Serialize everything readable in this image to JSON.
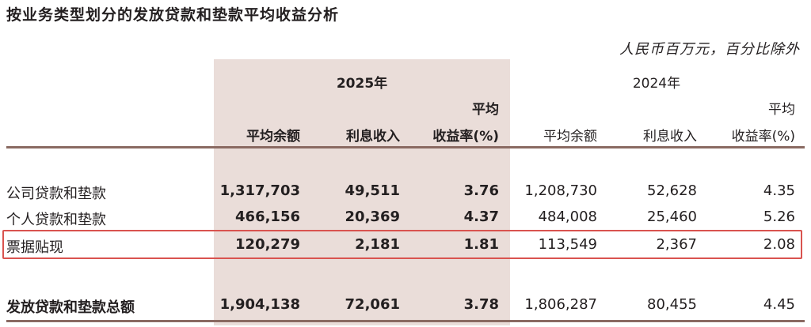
{
  "title": "按业务类型划分的发放贷款和垫款平均收益分析",
  "unit_note": "人民币百万元，百分比除外",
  "years": {
    "current": "2025年",
    "previous": "2024年"
  },
  "columns": {
    "current": {
      "avg_balance": "平均余额",
      "interest_income": "利息收入",
      "yield_line1": "平均",
      "yield_line2": "收益率(%)"
    },
    "previous": {
      "avg_balance": "平均余额",
      "interest_income": "利息收入",
      "yield_line1": "平均",
      "yield_line2": "收益率(%)"
    }
  },
  "rows": [
    {
      "label": "公司贷款和垫款",
      "cur_balance": "1,317,703",
      "cur_income": "49,511",
      "cur_yield": "3.76",
      "prev_balance": "1,208,730",
      "prev_income": "52,628",
      "prev_yield": "4.35"
    },
    {
      "label": "个人贷款和垫款",
      "cur_balance": "466,156",
      "cur_income": "20,369",
      "cur_yield": "4.37",
      "prev_balance": "484,008",
      "prev_income": "25,460",
      "prev_yield": "5.26"
    },
    {
      "label": "票据贴现",
      "cur_balance": "120,279",
      "cur_income": "2,181",
      "cur_yield": "1.81",
      "prev_balance": "113,549",
      "prev_income": "2,367",
      "prev_yield": "2.08",
      "highlighted": true
    }
  ],
  "total": {
    "label": "发放贷款和垫款总额",
    "cur_balance": "1,904,138",
    "cur_income": "72,061",
    "cur_yield": "3.78",
    "prev_balance": "1,806,287",
    "prev_income": "80,455",
    "prev_yield": "4.45"
  },
  "colors": {
    "shade": "#eaddd9",
    "rule": "#8a6a62",
    "highlight": "#d9534f",
    "text": "#231f20"
  }
}
